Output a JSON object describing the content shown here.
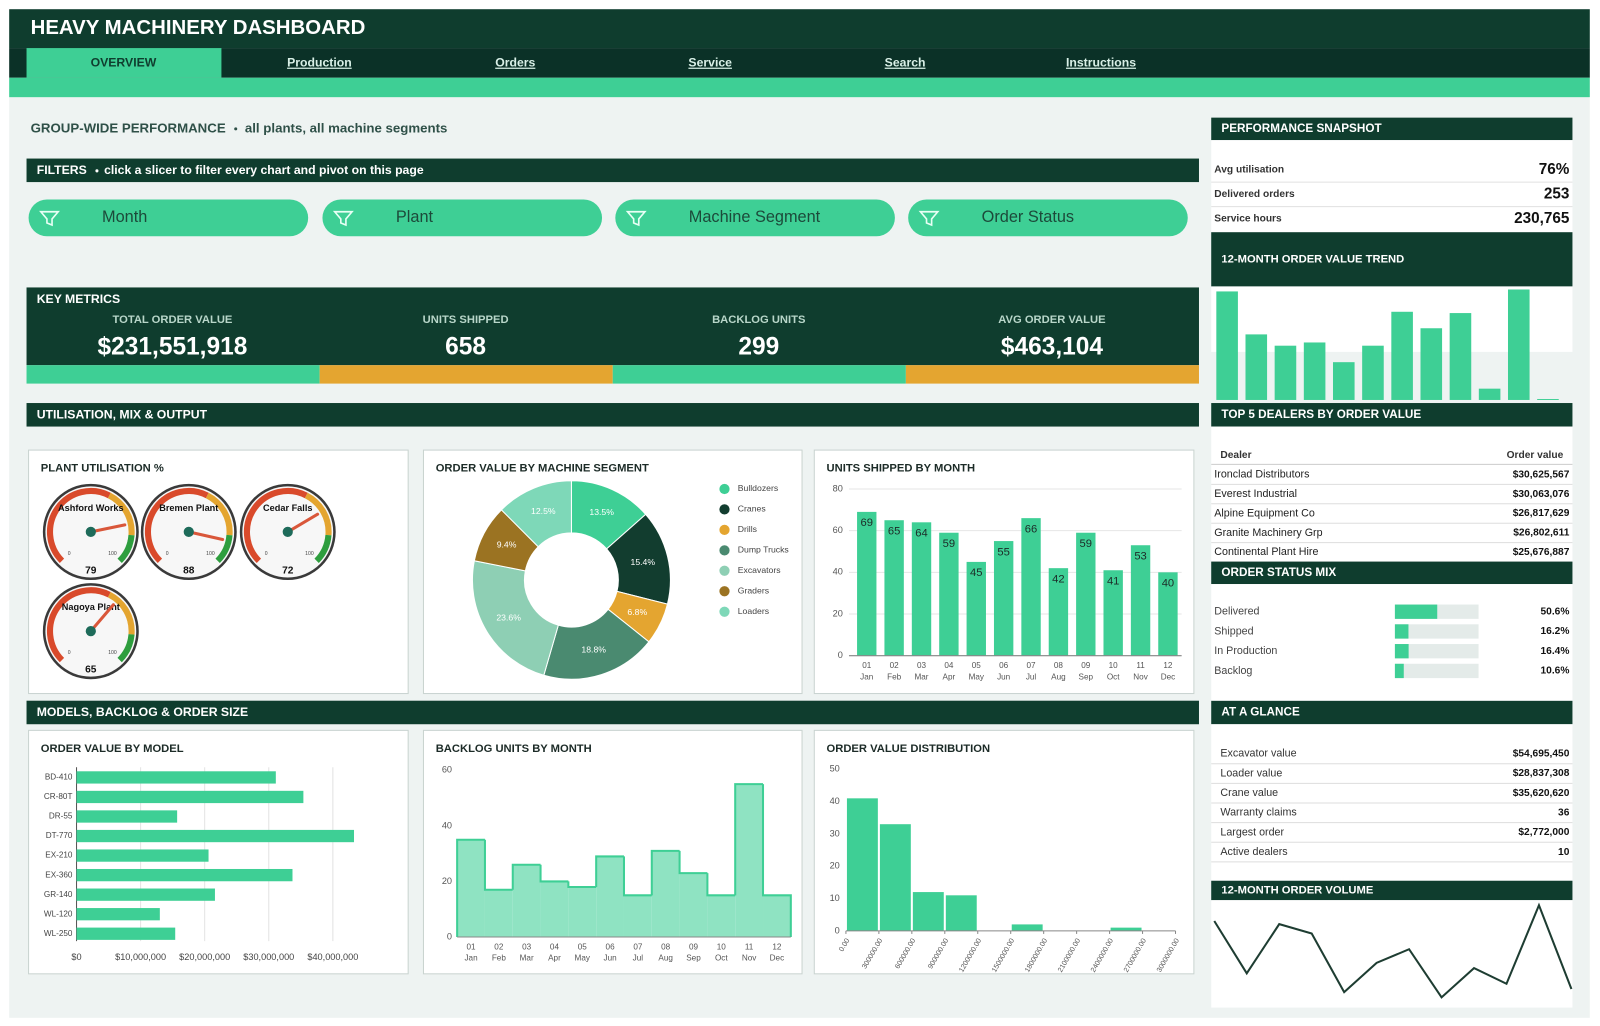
{
  "header": {
    "title": "HEAVY MACHINERY DASHBOARD",
    "tabs": [
      "OVERVIEW",
      "Production",
      "Orders",
      "Service",
      "Search",
      "Instructions"
    ]
  },
  "overview": {
    "heading": "GROUP-WIDE PERFORMANCE",
    "subtitle": "all plants, all machine segments"
  },
  "filters": {
    "title": "FILTERS",
    "hint": "click a slicer to filter every chart and pivot on this page",
    "slicers": [
      "Month",
      "Plant",
      "Machine Segment",
      "Order Status"
    ]
  },
  "key_metrics": {
    "title": "KEY METRICS",
    "items": [
      [
        "TOTAL ORDER VALUE",
        "$231,551,918"
      ],
      [
        "UNITS SHIPPED",
        "658"
      ],
      [
        "BACKLOG UNITS",
        "299"
      ],
      [
        "AVG ORDER VALUE",
        "$463,104"
      ]
    ]
  },
  "sections": [
    "UTILISATION, MIX & OUTPUT",
    "MODELS, BACKLOG & ORDER SIZE"
  ],
  "snapshot": {
    "title": "PERFORMANCE SNAPSHOT",
    "rows": [
      [
        "Avg utilisation",
        "76%"
      ],
      [
        "Delivered orders",
        "253"
      ],
      [
        "Service hours",
        "230,765"
      ]
    ]
  },
  "dealers": {
    "title": "TOP 5 DEALERS BY ORDER VALUE",
    "columns": [
      "Dealer",
      "Order value"
    ],
    "rows": [
      [
        "Ironclad Distributors",
        "$30,625,567"
      ],
      [
        "Everest Industrial",
        "$30,063,076"
      ],
      [
        "Alpine Equipment Co",
        "$26,817,629"
      ],
      [
        "Granite Machinery Grp",
        "$26,802,611"
      ],
      [
        "Continental Plant Hire",
        "$25,676,887"
      ]
    ]
  },
  "glance": {
    "title": "AT A GLANCE",
    "rows": [
      [
        "Excavator value",
        "$54,695,450"
      ],
      [
        "Loader value",
        "$28,837,308"
      ],
      [
        "Crane value",
        "$35,620,620"
      ],
      [
        "Warranty claims",
        "36"
      ],
      [
        "Largest order",
        "$2,772,000"
      ],
      [
        "Active dealers",
        "10"
      ]
    ]
  },
  "chart_data": [
    {
      "type": "gauge",
      "title": "PLANT UTILISATION %",
      "categories": [
        "Ashford Works",
        "Bremen Plant",
        "Cedar Falls",
        "Nagoya Plant"
      ],
      "values": [
        79,
        88,
        72,
        65
      ],
      "lim": [
        0,
        100
      ],
      "ticks": [
        0,
        100
      ]
    },
    {
      "type": "pie",
      "donut": true,
      "title": "ORDER VALUE BY MACHINE SEGMENT",
      "categories": [
        "Bulldozers",
        "Cranes",
        "Drills",
        "Dump Trucks",
        "Excavators",
        "Graders",
        "Loaders"
      ],
      "values": [
        13.5,
        15.4,
        6.8,
        18.8,
        23.6,
        9.4,
        12.5
      ],
      "value_labels": [
        "13.5%",
        "15.4%",
        "6.8%",
        "18.8%",
        "23.6%",
        "9.4%",
        "12.5%"
      ],
      "colors": [
        "#3ecf95",
        "#123d2f",
        "#e4a530",
        "#4a8a70",
        "#8ecfb4",
        "#9b7322",
        "#7ed8b8"
      ]
    },
    {
      "type": "bar",
      "title": "UNITS SHIPPED BY MONTH",
      "categories": [
        "01",
        "02",
        "03",
        "04",
        "05",
        "06",
        "07",
        "08",
        "09",
        "10",
        "11",
        "12"
      ],
      "category_sublabels": [
        "Jan",
        "Feb",
        "Mar",
        "Apr",
        "May",
        "Jun",
        "Jul",
        "Aug",
        "Sep",
        "Oct",
        "Nov",
        "Dec"
      ],
      "values": [
        69,
        65,
        64,
        59,
        45,
        55,
        66,
        42,
        59,
        41,
        53,
        40
      ],
      "color": "#3ecf95",
      "ylim": [
        0,
        80
      ],
      "yticks": [
        0,
        20,
        40,
        60,
        80
      ],
      "grid": true,
      "value_labels_shown": true
    },
    {
      "type": "bar",
      "orientation": "horizontal",
      "title": "ORDER VALUE BY MODEL",
      "categories": [
        "BD-410",
        "CR-80T",
        "DR-55",
        "DT-770",
        "EX-210",
        "EX-360",
        "GR-140",
        "WL-120",
        "WL-250"
      ],
      "values": [
        31100000,
        35400000,
        15700000,
        43300000,
        20600000,
        33700000,
        21600000,
        13000000,
        15400000
      ],
      "color": "#3ecf95",
      "xlim": [
        0,
        50000000
      ],
      "xticks": [
        {
          "value": 0,
          "label": "$0"
        },
        {
          "value": 10000000,
          "label": "$10,000,000"
        },
        {
          "value": 20000000,
          "label": "$20,000,000"
        },
        {
          "value": 30000000,
          "label": "$30,000,000"
        },
        {
          "value": 40000000,
          "label": "$40,000,000"
        }
      ],
      "grid": true
    },
    {
      "type": "area",
      "step": true,
      "title": "BACKLOG UNITS BY MONTH",
      "categories": [
        "01",
        "02",
        "03",
        "04",
        "05",
        "06",
        "07",
        "08",
        "09",
        "10",
        "11",
        "12"
      ],
      "category_sublabels": [
        "Jan",
        "Feb",
        "Mar",
        "Apr",
        "May",
        "Jun",
        "Jul",
        "Aug",
        "Sep",
        "Oct",
        "Nov",
        "Dec"
      ],
      "values": [
        35,
        17,
        26,
        20,
        18,
        29,
        15,
        31,
        23,
        15,
        55,
        15
      ],
      "color": "#3ecf95",
      "ylim": [
        0,
        60
      ],
      "yticks": [
        0,
        20,
        40,
        60
      ]
    },
    {
      "type": "histogram",
      "title": "ORDER VALUE DISTRIBUTION",
      "bins": [
        0,
        300000,
        600000,
        900000,
        1200000,
        1500000,
        1800000,
        2100000,
        2400000,
        2700000,
        3000000
      ],
      "counts": [
        41,
        33,
        12,
        11,
        0,
        2,
        0,
        0,
        1,
        0
      ],
      "color": "#3ecf95",
      "xlim": [
        0,
        3000000
      ],
      "xticks": [
        {
          "value": 0,
          "label": "0.00"
        },
        {
          "value": 300000,
          "label": "300000.00"
        },
        {
          "value": 600000,
          "label": "600000.00"
        },
        {
          "value": 900000,
          "label": "900000.00"
        },
        {
          "value": 1200000,
          "label": "1200000.00"
        },
        {
          "value": 1500000,
          "label": "1500000.00"
        },
        {
          "value": 1800000,
          "label": "1800000.00"
        },
        {
          "value": 2100000,
          "label": "2100000.00"
        },
        {
          "value": 2400000,
          "label": "2400000.00"
        },
        {
          "value": 2700000,
          "label": "2700000.00"
        },
        {
          "value": 3000000,
          "label": "3000000.00"
        }
      ],
      "ylim": [
        0,
        50
      ],
      "yticks": [
        0,
        10,
        20,
        30,
        40,
        50
      ]
    },
    {
      "type": "bar",
      "title": "12-MONTH ORDER VALUE TREND",
      "values": [
        33600000,
        20300000,
        16800000,
        17800000,
        11700000,
        16800000,
        27300000,
        22200000,
        26900000,
        3500000,
        34200000,
        300000
      ],
      "color": "#3ecf95"
    },
    {
      "type": "progress",
      "title": "ORDER STATUS MIX",
      "categories": [
        "Delivered",
        "Shipped",
        "In Production",
        "Backlog"
      ],
      "values": [
        50.6,
        16.2,
        16.4,
        10.6
      ],
      "value_labels": [
        "50.6%",
        "16.2%",
        "16.4%",
        "10.6%"
      ],
      "color": "#3ecf95",
      "xlim": [
        0,
        100
      ]
    },
    {
      "type": "line",
      "title": "12-MONTH ORDER VOLUME",
      "values": [
        80,
        30,
        77,
        68,
        12,
        40,
        53,
        7,
        35,
        20,
        95,
        15
      ],
      "color": "#1e3d32"
    }
  ]
}
